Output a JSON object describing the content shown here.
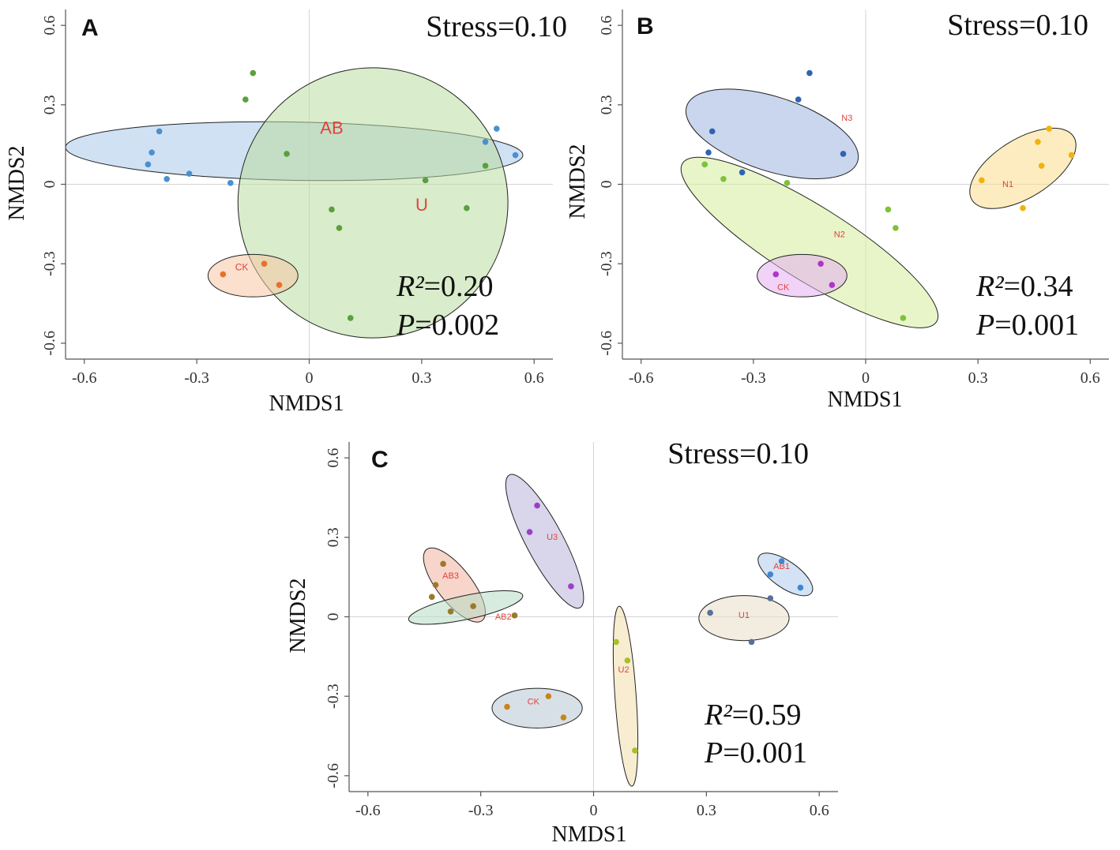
{
  "chart_data": [
    {
      "panel": "A",
      "type": "scatter",
      "xlabel": "NMDS1",
      "ylabel": "NMDS2",
      "xlim": [
        -0.65,
        0.65
      ],
      "ylim": [
        -0.66,
        0.66
      ],
      "xticks": [
        -0.6,
        -0.3,
        0,
        0.3,
        0.6
      ],
      "yticks": [
        -0.6,
        -0.3,
        0,
        0.3,
        0.6
      ],
      "xtick_labels": [
        "-0.6",
        "-0.3",
        "0",
        "0.3",
        "0.6"
      ],
      "ytick_labels": [
        "-0.6",
        "-0.3",
        "0",
        "0.3",
        "0.6"
      ],
      "stress": "Stress=0.10",
      "r2_symbol": "R²",
      "r2_value": "=0.20",
      "p_symbol": "P",
      "p_value": "=0.002",
      "series": [
        {
          "name": "AB",
          "color": "#4a90d0",
          "fill": "#a9c9ea",
          "label_size": 22,
          "label_at": [
            0.06,
            0.19
          ],
          "ellipse": {
            "center": [
              -0.04,
              0.125
            ],
            "rx": 0.61,
            "ry": 0.11,
            "angle_deg": -1
          },
          "points": [
            [
              -0.4,
              0.2
            ],
            [
              -0.42,
              0.12
            ],
            [
              -0.43,
              0.075
            ],
            [
              -0.38,
              0.02
            ],
            [
              -0.32,
              0.04
            ],
            [
              -0.21,
              0.005
            ],
            [
              0.47,
              0.16
            ],
            [
              0.5,
              0.21
            ],
            [
              0.55,
              0.11
            ]
          ]
        },
        {
          "name": "U",
          "color": "#5aa03c",
          "fill": "#b9dca0",
          "label_size": 22,
          "label_at": [
            0.3,
            -0.1
          ],
          "ellipse": {
            "center": [
              0.17,
              -0.07
            ],
            "rx": 0.36,
            "ry": 0.51,
            "angle_deg": 12
          },
          "points": [
            [
              -0.15,
              0.42
            ],
            [
              -0.17,
              0.32
            ],
            [
              -0.06,
              0.115
            ],
            [
              0.31,
              0.015
            ],
            [
              0.47,
              0.07
            ],
            [
              0.06,
              -0.095
            ],
            [
              0.08,
              -0.165
            ],
            [
              0.42,
              -0.09
            ],
            [
              0.11,
              -0.505
            ]
          ]
        },
        {
          "name": "CK",
          "color": "#e8702a",
          "fill": "#f6c6a4",
          "label_size": 12,
          "label_at": [
            -0.18,
            -0.325
          ],
          "ellipse": {
            "center": [
              -0.15,
              -0.345
            ],
            "rx": 0.12,
            "ry": 0.08,
            "angle_deg": 0
          },
          "points": [
            [
              -0.23,
              -0.34
            ],
            [
              -0.12,
              -0.3
            ],
            [
              -0.08,
              -0.38
            ]
          ]
        }
      ]
    },
    {
      "panel": "B",
      "type": "scatter",
      "xlabel": "NMDS1",
      "ylabel": "NMDS2",
      "xlim": [
        -0.65,
        0.65
      ],
      "ylim": [
        -0.66,
        0.66
      ],
      "xticks": [
        -0.6,
        -0.3,
        0,
        0.3,
        0.6
      ],
      "yticks": [
        -0.6,
        -0.3,
        0,
        0.3,
        0.6
      ],
      "xtick_labels": [
        "-0.6",
        "-0.3",
        "0",
        "0.3",
        "0.6"
      ],
      "ytick_labels": [
        "-0.6",
        "-0.3",
        "0",
        "0.3",
        "0.6"
      ],
      "stress": "Stress=0.10",
      "r2_symbol": "R²",
      "r2_value": "=0.34",
      "p_symbol": "P",
      "p_value": "=0.001",
      "series": [
        {
          "name": "N3",
          "color": "#2f63b4",
          "fill": "#9db5de",
          "label_size": 11,
          "label_at": [
            -0.05,
            0.24
          ],
          "ellipse": {
            "center": [
              -0.25,
              0.19
            ],
            "rx": 0.24,
            "ry": 0.14,
            "angle_deg": -18
          },
          "points": [
            [
              -0.15,
              0.42
            ],
            [
              -0.18,
              0.32
            ],
            [
              -0.41,
              0.2
            ],
            [
              -0.42,
              0.12
            ],
            [
              -0.33,
              0.045
            ],
            [
              -0.06,
              0.115
            ]
          ]
        },
        {
          "name": "N2",
          "color": "#7dc238",
          "fill": "#d4ec9c",
          "label_size": 11,
          "label_at": [
            -0.07,
            -0.2
          ],
          "ellipse": {
            "center": [
              -0.15,
              -0.22
            ],
            "rx": 0.4,
            "ry": 0.14,
            "angle_deg": -32
          },
          "points": [
            [
              -0.43,
              0.075
            ],
            [
              -0.38,
              0.02
            ],
            [
              -0.21,
              0.005
            ],
            [
              0.06,
              -0.095
            ],
            [
              0.08,
              -0.165
            ],
            [
              0.1,
              -0.505
            ]
          ]
        },
        {
          "name": "CK",
          "color": "#b035c8",
          "fill": "#e4aef0",
          "label_size": 11,
          "label_at": [
            -0.22,
            -0.4
          ],
          "ellipse": {
            "center": [
              -0.17,
              -0.345
            ],
            "rx": 0.12,
            "ry": 0.08,
            "angle_deg": 0
          },
          "points": [
            [
              -0.24,
              -0.34
            ],
            [
              -0.12,
              -0.3
            ],
            [
              -0.09,
              -0.38
            ]
          ]
        },
        {
          "name": "N1",
          "color": "#f2b20c",
          "fill": "#fbdd8c",
          "label_size": 11,
          "label_at": [
            0.38,
            -0.01
          ],
          "ellipse": {
            "center": [
              0.42,
              0.06
            ],
            "rx": 0.16,
            "ry": 0.11,
            "angle_deg": 32
          },
          "points": [
            [
              0.31,
              0.015
            ],
            [
              0.42,
              -0.09
            ],
            [
              0.47,
              0.07
            ],
            [
              0.46,
              0.16
            ],
            [
              0.49,
              0.21
            ],
            [
              0.55,
              0.11
            ]
          ]
        }
      ]
    },
    {
      "panel": "C",
      "type": "scatter",
      "xlabel": "NMDS1",
      "ylabel": "NMDS2",
      "xlim": [
        -0.65,
        0.65
      ],
      "ylim": [
        -0.66,
        0.66
      ],
      "xticks": [
        -0.6,
        -0.3,
        0,
        0.3,
        0.6
      ],
      "yticks": [
        -0.6,
        -0.3,
        0,
        0.3,
        0.6
      ],
      "xtick_labels": [
        "-0.6",
        "-0.3",
        "0",
        "0.3",
        "0.6"
      ],
      "ytick_labels": [
        "-0.6",
        "-0.3",
        "0",
        "0.3",
        "0.6"
      ],
      "stress": "Stress=0.10",
      "r2_symbol": "R²",
      "r2_value": "=0.59",
      "p_symbol": "P",
      "p_value": "=0.001",
      "series": [
        {
          "name": "U3",
          "color": "#9b3fc8",
          "fill": "#b9b3d8",
          "label_size": 11,
          "label_at": [
            -0.11,
            0.29
          ],
          "ellipse": {
            "center": [
              -0.13,
              0.285
            ],
            "rx": 0.2,
            "ry": 0.07,
            "angle_deg": -62
          },
          "points": [
            [
              -0.15,
              0.42
            ],
            [
              -0.17,
              0.32
            ],
            [
              -0.06,
              0.115
            ]
          ]
        },
        {
          "name": "AB3",
          "color": "#9a7a2a",
          "fill": "#f3b3a0",
          "label_size": 11,
          "label_at": [
            -0.38,
            0.145
          ],
          "ellipse": {
            "center": [
              -0.37,
              0.12
            ],
            "rx": 0.12,
            "ry": 0.065,
            "angle_deg": -52
          },
          "points": [
            [
              -0.4,
              0.2
            ],
            [
              -0.42,
              0.12
            ],
            [
              -0.43,
              0.075
            ],
            [
              -0.38,
              0.02
            ]
          ]
        },
        {
          "name": "AB2",
          "color": "#9a7a2a",
          "fill": "#b6dcc4",
          "label_size": 11,
          "label_at": [
            -0.24,
            -0.01
          ],
          "ellipse": {
            "center": [
              -0.34,
              0.035
            ],
            "rx": 0.155,
            "ry": 0.045,
            "angle_deg": 12
          },
          "points": [
            [
              -0.32,
              0.04
            ],
            [
              -0.21,
              0.005
            ]
          ]
        },
        {
          "name": "CK",
          "color": "#c8861a",
          "fill": "#b8c6d4",
          "label_size": 11,
          "label_at": [
            -0.16,
            -0.33
          ],
          "ellipse": {
            "center": [
              -0.15,
              -0.345
            ],
            "rx": 0.12,
            "ry": 0.075,
            "angle_deg": 0
          },
          "points": [
            [
              -0.23,
              -0.34
            ],
            [
              -0.12,
              -0.3
            ],
            [
              -0.08,
              -0.38
            ]
          ]
        },
        {
          "name": "U2",
          "color": "#a8c028",
          "fill": "#f3dfaa",
          "label_size": 11,
          "label_at": [
            0.08,
            -0.21
          ],
          "ellipse": {
            "center": [
              0.085,
              -0.3
            ],
            "rx": 0.24,
            "ry": 0.04,
            "angle_deg": -86
          },
          "points": [
            [
              0.06,
              -0.095
            ],
            [
              0.09,
              -0.165
            ],
            [
              0.11,
              -0.505
            ]
          ]
        },
        {
          "name": "U1",
          "color": "#5a6f9a",
          "fill": "#e8ddc8",
          "label_size": 11,
          "label_at": [
            0.4,
            -0.005
          ],
          "ellipse": {
            "center": [
              0.4,
              -0.005
            ],
            "rx": 0.12,
            "ry": 0.085,
            "angle_deg": 0
          },
          "points": [
            [
              0.31,
              0.015
            ],
            [
              0.47,
              0.07
            ],
            [
              0.42,
              -0.095
            ]
          ]
        },
        {
          "name": "AB1",
          "color": "#3f86d0",
          "fill": "#aecbec",
          "label_size": 11,
          "label_at": [
            0.5,
            0.18
          ],
          "ellipse": {
            "center": [
              0.51,
              0.16
            ],
            "rx": 0.085,
            "ry": 0.05,
            "angle_deg": -35
          },
          "points": [
            [
              0.5,
              0.21
            ],
            [
              0.47,
              0.16
            ],
            [
              0.55,
              0.11
            ]
          ]
        }
      ]
    }
  ]
}
